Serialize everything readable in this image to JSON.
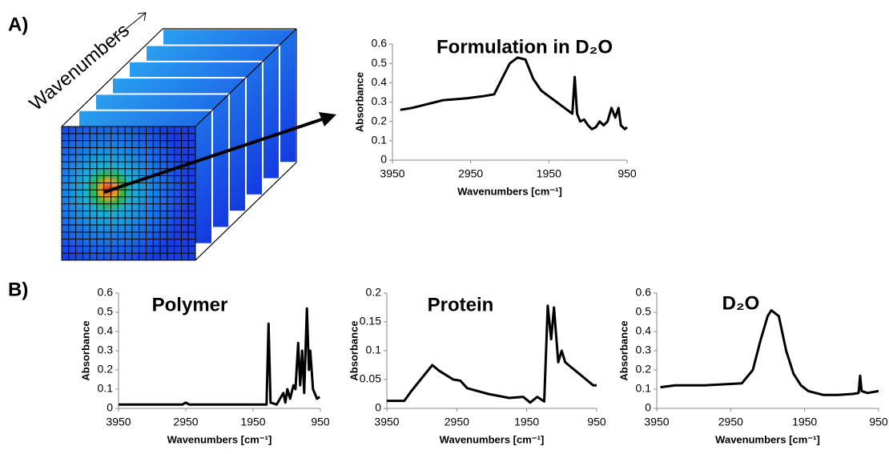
{
  "panel_labels": {
    "a": "A)",
    "b": "B)",
    "cube_axis": "Wavenumbers"
  },
  "chart_data": [
    {
      "type": "line",
      "title": "Formulation in D₂O",
      "xlabel": "Wavenumbers [cm⁻¹]",
      "ylabel": "Absorbance",
      "color": "#000000",
      "xlim": [
        3950,
        950
      ],
      "xticks": [
        3950,
        2950,
        1950,
        950
      ],
      "ylim": [
        0,
        0.6
      ],
      "yticks": [
        0,
        0.1,
        0.2,
        0.3,
        0.4,
        0.5,
        0.6
      ],
      "x": [
        3850,
        3700,
        3500,
        3300,
        3000,
        2800,
        2650,
        2550,
        2450,
        2350,
        2250,
        2150,
        2050,
        1950,
        1850,
        1750,
        1650,
        1620,
        1590,
        1550,
        1500,
        1450,
        1400,
        1350,
        1300,
        1250,
        1200,
        1150,
        1100,
        1060,
        1030,
        980,
        950
      ],
      "values": [
        0.26,
        0.27,
        0.29,
        0.31,
        0.32,
        0.33,
        0.34,
        0.42,
        0.5,
        0.53,
        0.52,
        0.42,
        0.36,
        0.33,
        0.3,
        0.27,
        0.24,
        0.43,
        0.24,
        0.2,
        0.21,
        0.18,
        0.16,
        0.17,
        0.2,
        0.18,
        0.2,
        0.27,
        0.22,
        0.27,
        0.18,
        0.16,
        0.17
      ]
    },
    {
      "type": "line",
      "title": "Polymer",
      "xlabel": "Wavenumbers [cm⁻¹]",
      "ylabel": "Absorbance",
      "color": "#000000",
      "xlim": [
        3950,
        950
      ],
      "xticks": [
        3950,
        2950,
        1950,
        950
      ],
      "ylim": [
        0,
        0.6
      ],
      "yticks": [
        0,
        0.1,
        0.2,
        0.3,
        0.4,
        0.5,
        0.6
      ],
      "x": [
        3950,
        3500,
        3000,
        2950,
        2900,
        2500,
        2000,
        1800,
        1750,
        1720,
        1690,
        1600,
        1500,
        1470,
        1440,
        1400,
        1350,
        1320,
        1280,
        1250,
        1220,
        1190,
        1150,
        1120,
        1100,
        1060,
        1000,
        960
      ],
      "values": [
        0.02,
        0.02,
        0.02,
        0.03,
        0.02,
        0.02,
        0.02,
        0.02,
        0.02,
        0.44,
        0.03,
        0.02,
        0.08,
        0.03,
        0.1,
        0.05,
        0.12,
        0.1,
        0.34,
        0.12,
        0.3,
        0.08,
        0.52,
        0.2,
        0.3,
        0.1,
        0.05,
        0.06
      ]
    },
    {
      "type": "line",
      "title": "Protein",
      "xlabel": "Wavenumbers [cm⁻¹]",
      "ylabel": "Absorbance",
      "color": "#000000",
      "xlim": [
        3950,
        950
      ],
      "xticks": [
        3950,
        2950,
        1950,
        950
      ],
      "ylim": [
        0,
        0.2
      ],
      "yticks": [
        0,
        0.05,
        0.1,
        0.15,
        0.2
      ],
      "x": [
        3950,
        3700,
        3600,
        3400,
        3300,
        3200,
        3000,
        2900,
        2800,
        2500,
        2200,
        2000,
        1900,
        1800,
        1700,
        1650,
        1600,
        1560,
        1500,
        1450,
        1400,
        1300,
        1200,
        1100,
        1000,
        950
      ],
      "values": [
        0.013,
        0.013,
        0.03,
        0.06,
        0.075,
        0.065,
        0.05,
        0.048,
        0.035,
        0.025,
        0.018,
        0.02,
        0.01,
        0.02,
        0.012,
        0.178,
        0.12,
        0.175,
        0.08,
        0.1,
        0.08,
        0.07,
        0.06,
        0.05,
        0.04,
        0.04
      ]
    },
    {
      "type": "line",
      "title": "D₂O",
      "xlabel": "Wavenumbers [cm⁻¹]",
      "ylabel": "Absorbance",
      "color": "#000000",
      "xlim": [
        3950,
        950
      ],
      "xticks": [
        3950,
        2950,
        1950,
        950
      ],
      "ylim": [
        0,
        0.6
      ],
      "yticks": [
        0,
        0.1,
        0.2,
        0.3,
        0.4,
        0.5,
        0.6
      ],
      "x": [
        3900,
        3700,
        3300,
        2800,
        2650,
        2550,
        2450,
        2400,
        2300,
        2200,
        2100,
        2000,
        1900,
        1700,
        1500,
        1300,
        1220,
        1200,
        1180,
        1100,
        950
      ],
      "values": [
        0.11,
        0.12,
        0.12,
        0.13,
        0.2,
        0.35,
        0.48,
        0.51,
        0.48,
        0.3,
        0.18,
        0.12,
        0.09,
        0.07,
        0.07,
        0.075,
        0.08,
        0.17,
        0.09,
        0.08,
        0.09
      ]
    }
  ]
}
